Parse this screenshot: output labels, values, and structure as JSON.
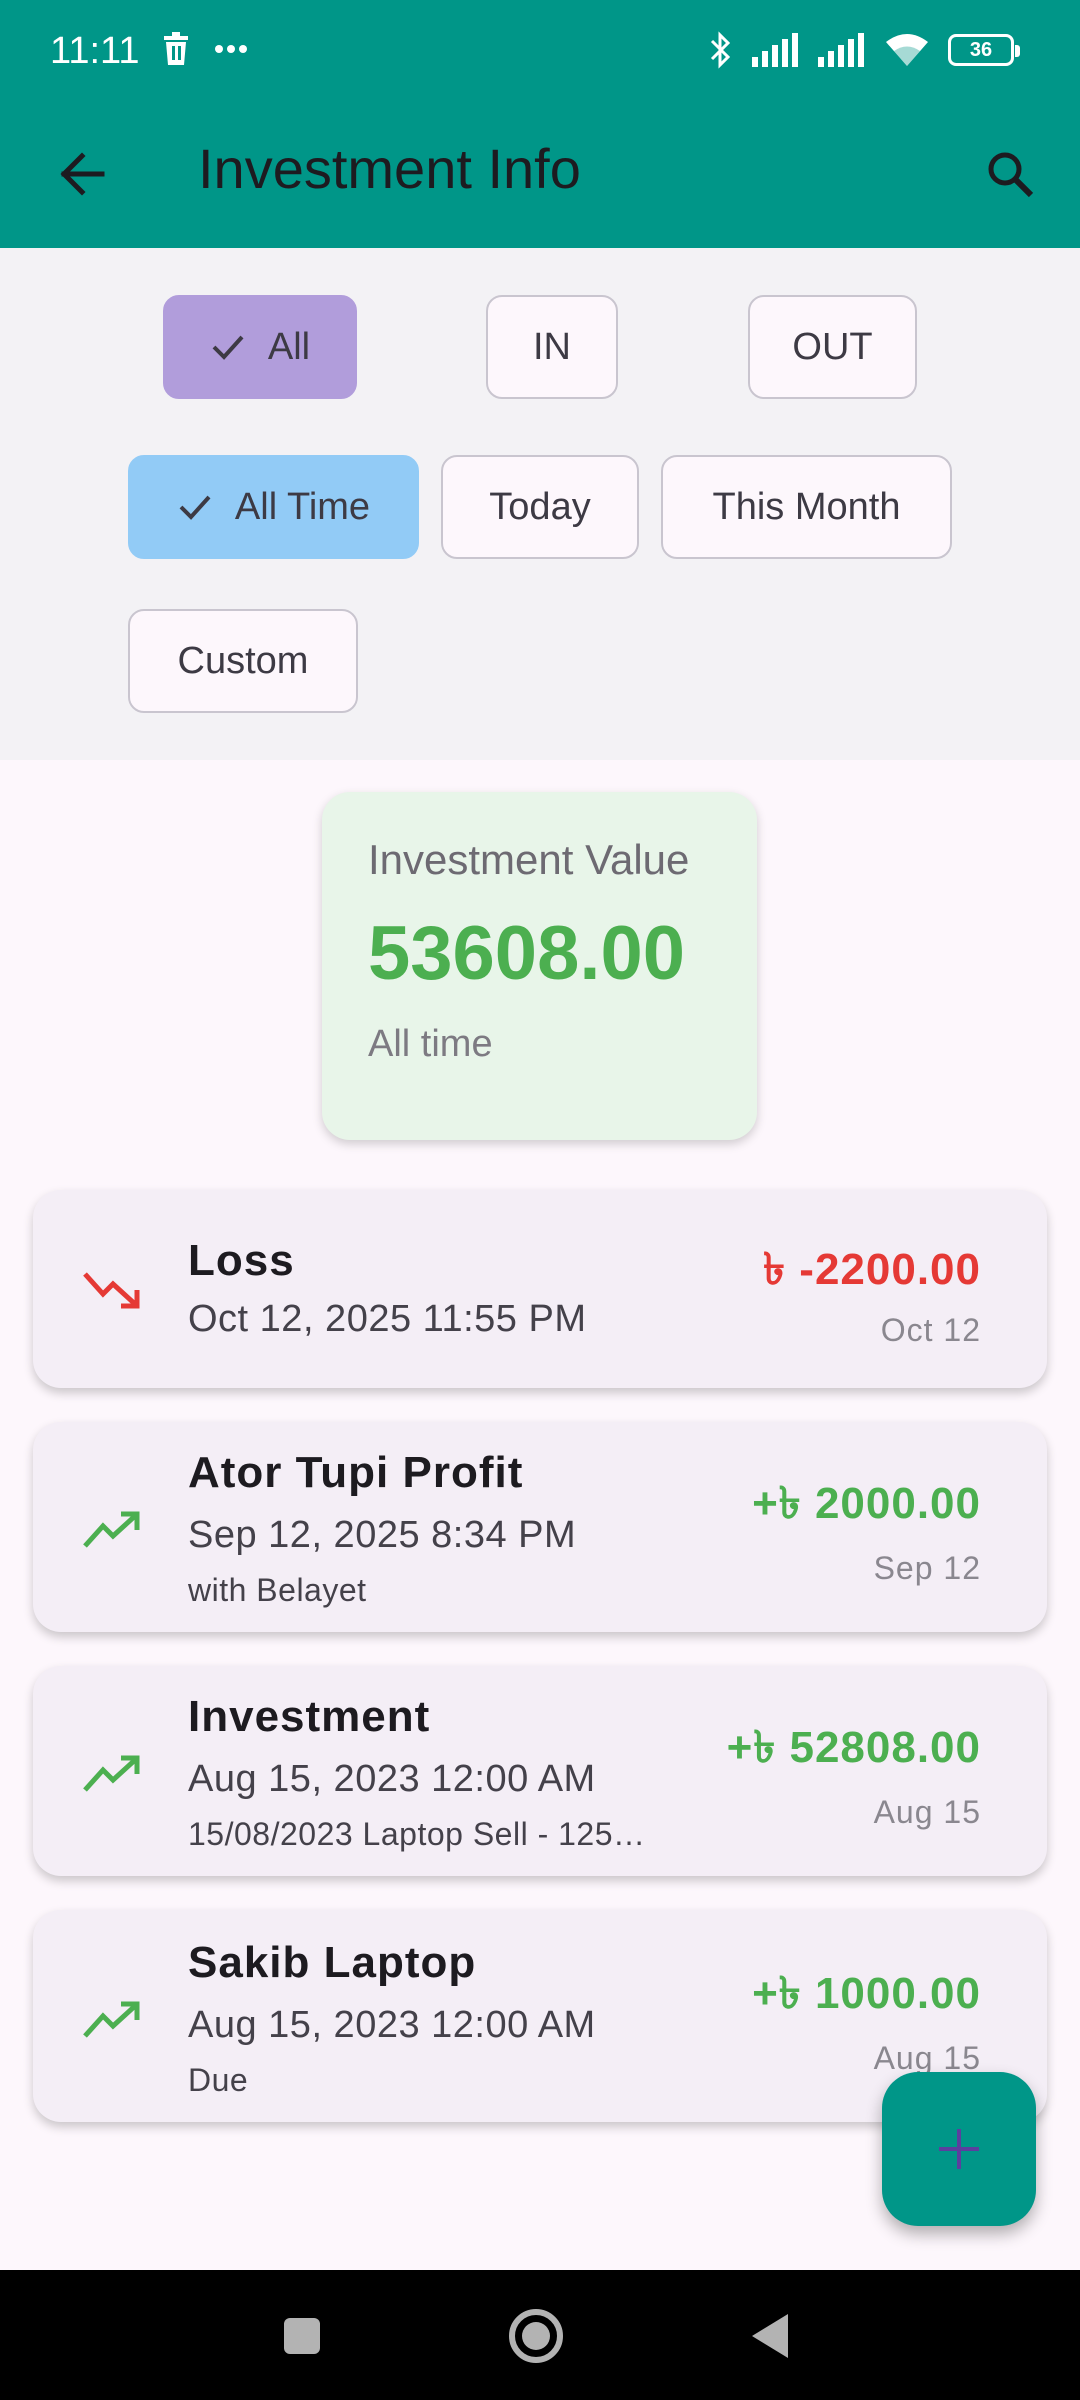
{
  "status_bar": {
    "time": "11:11",
    "battery": "36",
    "icons": [
      "trash-icon",
      "more-dots-icon",
      "bluetooth-icon",
      "signal-icon",
      "signal-icon",
      "wifi-icon",
      "battery-icon"
    ]
  },
  "app_bar": {
    "title": "Investment Info",
    "back_icon": "arrow-left-icon",
    "search_icon": "search-icon",
    "color": "#009688"
  },
  "filters": {
    "type": [
      {
        "label": "All",
        "selected": true
      },
      {
        "label": "IN",
        "selected": false
      },
      {
        "label": "OUT",
        "selected": false
      }
    ],
    "period": [
      {
        "label": "All Time",
        "selected": true
      },
      {
        "label": "Today",
        "selected": false
      },
      {
        "label": "This Month",
        "selected": false
      },
      {
        "label": "Custom",
        "selected": false
      }
    ]
  },
  "summary": {
    "label": "Investment Value",
    "value": "53608.00",
    "period": "All time",
    "value_color": "#4caf50"
  },
  "transactions": [
    {
      "title": "Loss",
      "datetime": "Oct 12, 2025 11:55 PM",
      "note": "",
      "amount": "৳ -2200.00",
      "short_date": "Oct 12",
      "direction": "down",
      "color": "#e53935"
    },
    {
      "title": "Ator Tupi Profit",
      "datetime": "Sep 12, 2025 8:34 PM",
      "note": "with Belayet",
      "amount": "+৳ 2000.00",
      "short_date": "Sep 12",
      "direction": "up",
      "color": "#4caf50"
    },
    {
      "title": "Investment",
      "datetime": "Aug 15, 2023 12:00 AM",
      "note": "15/08/2023  Laptop Sell - 125…",
      "amount": "+৳ 52808.00",
      "short_date": "Aug 15",
      "direction": "up",
      "color": "#4caf50"
    },
    {
      "title": "Sakib Laptop",
      "datetime": "Aug 15, 2023 12:00 AM",
      "note": "Due",
      "amount": "+৳ 1000.00",
      "short_date": "Aug 15",
      "direction": "up",
      "color": "#4caf50"
    }
  ],
  "fab": {
    "icon": "plus-icon"
  },
  "nav_bar": {
    "icons": [
      "recents-square-icon",
      "home-circle-icon",
      "back-triangle-icon"
    ]
  }
}
